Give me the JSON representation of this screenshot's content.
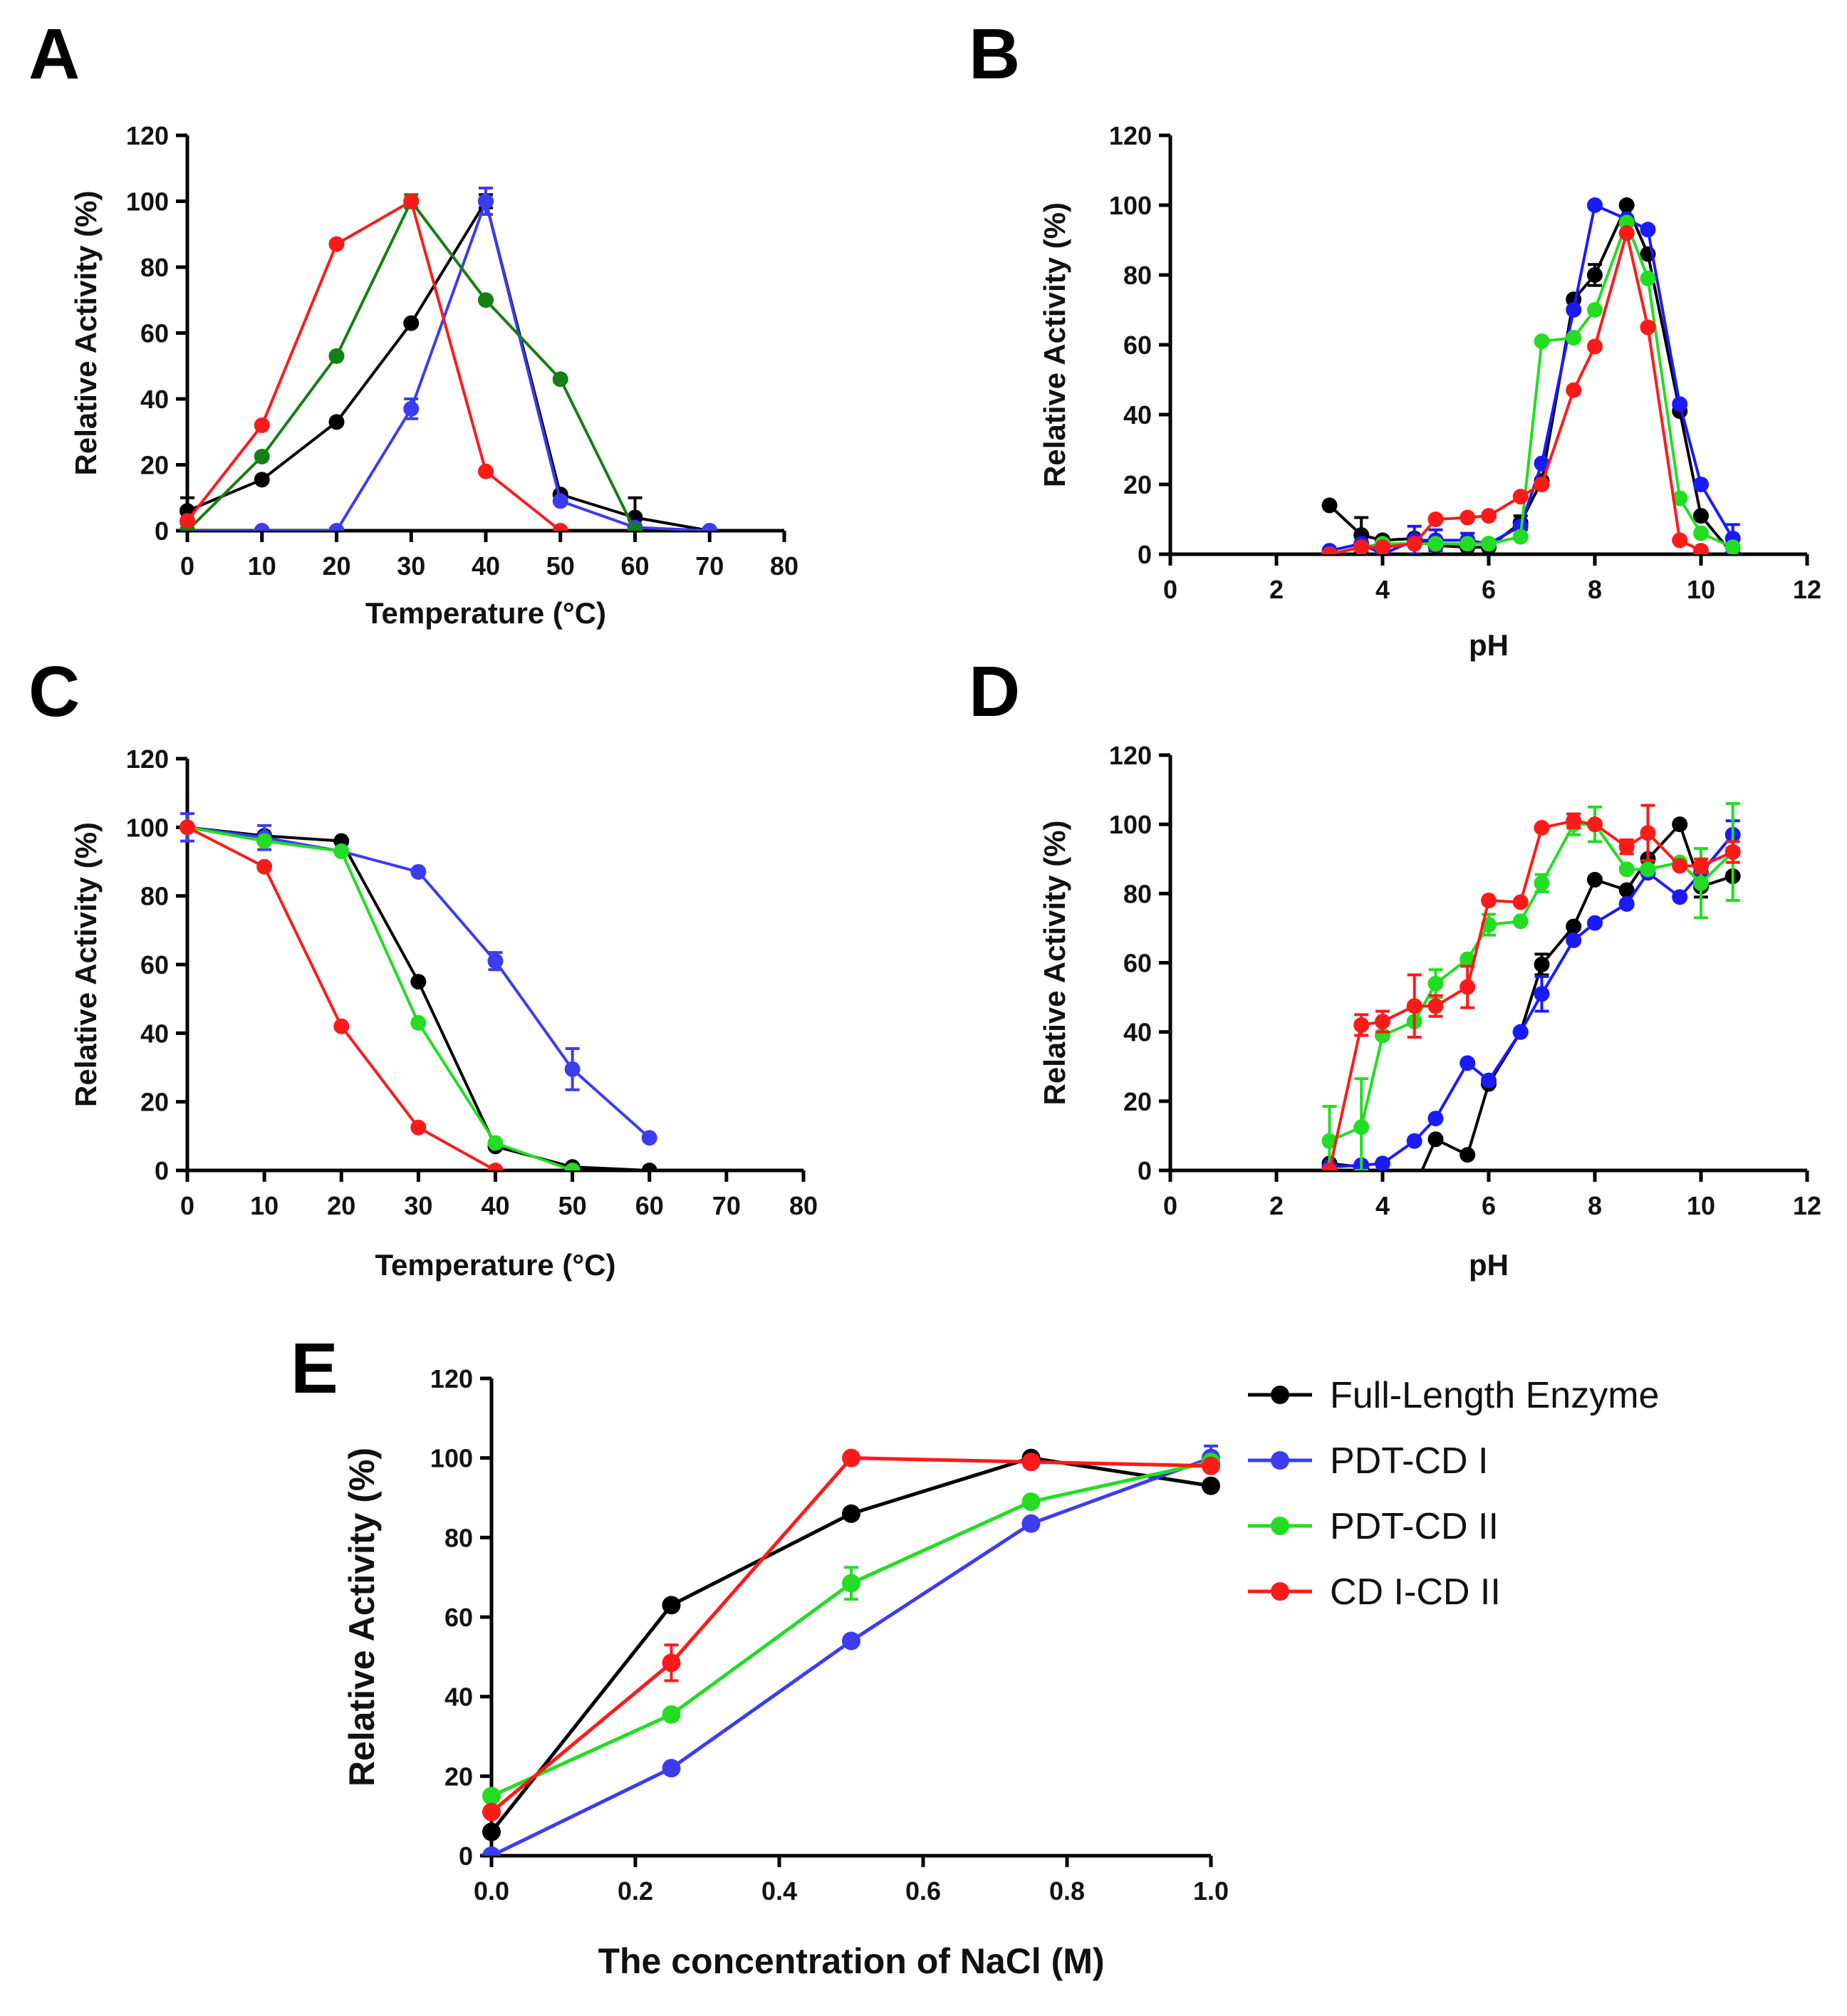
{
  "legend": [
    {
      "label": "Full-Length Enzyme",
      "color": "#000000"
    },
    {
      "label": "PDT-CD I",
      "color": "#3c3cf0"
    },
    {
      "label": "PDT-CD II",
      "color": "#22dd22"
    },
    {
      "label": "CD I-CD II",
      "color": "#ff1a1a"
    }
  ],
  "chart_data": [
    {
      "panel": "A",
      "type": "line",
      "xlabel": "Temperature (°C)",
      "ylabel": "Relative Activity (%)",
      "xlim": [
        0,
        80
      ],
      "ylim": [
        0,
        120
      ],
      "xticks": [
        0,
        10,
        20,
        30,
        40,
        50,
        60,
        70,
        80
      ],
      "yticks": [
        0,
        20,
        40,
        60,
        80,
        100,
        120
      ],
      "series": [
        {
          "name": "Full-Length Enzyme",
          "color": "#000000",
          "x": [
            0,
            10,
            20,
            30,
            40,
            50,
            60,
            70
          ],
          "y": [
            6,
            15.5,
            33,
            63,
            100,
            11,
            4,
            0
          ],
          "err": [
            4,
            0,
            0,
            0,
            2,
            0,
            6,
            0
          ]
        },
        {
          "name": "PDT-CD I",
          "color": "#3c3cf0",
          "x": [
            0,
            10,
            20,
            30,
            40,
            50,
            60,
            70
          ],
          "y": [
            0,
            0,
            0,
            37,
            100,
            9,
            1,
            0
          ],
          "err": [
            0,
            0,
            0,
            3,
            4,
            0,
            0,
            0
          ]
        },
        {
          "name": "PDT-CD II",
          "color": "#138013",
          "x": [
            0,
            10,
            20,
            30,
            40,
            50,
            60
          ],
          "y": [
            0,
            22.5,
            53,
            100,
            70,
            46,
            0
          ],
          "err": [
            0,
            0,
            0,
            2,
            0,
            0,
            0
          ]
        },
        {
          "name": "CD I-CD II",
          "color": "#ff1a1a",
          "x": [
            0,
            10,
            20,
            30,
            40,
            50
          ],
          "y": [
            3,
            32,
            87,
            100,
            18,
            0
          ],
          "err": [
            0,
            0,
            0,
            0,
            0,
            0
          ]
        }
      ]
    },
    {
      "panel": "B",
      "type": "line",
      "xlabel": "pH",
      "ylabel": "Relative Activity (%)",
      "xlim": [
        0,
        12
      ],
      "ylim": [
        0,
        120
      ],
      "xticks": [
        0,
        2,
        4,
        6,
        8,
        10,
        12
      ],
      "yticks": [
        0,
        20,
        40,
        60,
        80,
        100,
        120
      ],
      "series": [
        {
          "name": "Full-Length Enzyme",
          "color": "#000000",
          "x": [
            3,
            3.6,
            4,
            4.6,
            5,
            5.6,
            6,
            6.6,
            7,
            7.6,
            8,
            8.6,
            9,
            9.6,
            10,
            10.6
          ],
          "y": [
            14,
            5.5,
            4,
            4.5,
            2.5,
            2,
            2,
            9,
            21,
            73,
            80,
            100,
            86,
            41,
            11,
            0
          ],
          "err": [
            0,
            5,
            0,
            0,
            0,
            0,
            0,
            2,
            0,
            0,
            3,
            0,
            0,
            0,
            0,
            0
          ]
        },
        {
          "name": "PDT-CD I",
          "color": "#1a1aff",
          "x": [
            3,
            3.6,
            4,
            4.6,
            5,
            5.6,
            6,
            6.6,
            7,
            7.6,
            8,
            8.6,
            9,
            9.6,
            10,
            10.6
          ],
          "y": [
            1,
            3,
            0,
            4,
            4,
            4,
            3,
            8,
            26,
            70,
            100,
            96,
            93,
            43,
            20,
            4.5
          ],
          "err": [
            0,
            0,
            0,
            4,
            3,
            2,
            0,
            0,
            0,
            0,
            0,
            0,
            0,
            0,
            0,
            4
          ]
        },
        {
          "name": "PDT-CD II",
          "color": "#22dd22",
          "x": [
            3,
            3.6,
            4,
            4.6,
            5,
            5.6,
            6,
            6.6,
            7,
            7.6,
            8,
            8.6,
            9,
            9.6,
            10,
            10.6
          ],
          "y": [
            0,
            2,
            3,
            3,
            3,
            3,
            3,
            5,
            61,
            62,
            70,
            95,
            79,
            16,
            6,
            2
          ],
          "err": [
            0,
            0,
            0,
            0,
            0,
            0,
            0,
            0,
            0,
            0,
            0,
            0,
            0,
            0,
            0,
            0
          ]
        },
        {
          "name": "CD I-CD II",
          "color": "#ff1a1a",
          "x": [
            3,
            3.6,
            4,
            4.6,
            5,
            5.6,
            6,
            6.6,
            7,
            7.6,
            8,
            8.6,
            9,
            9.6,
            10
          ],
          "y": [
            0,
            2,
            2,
            3,
            10,
            10.5,
            11,
            16.5,
            20,
            47,
            59.5,
            92,
            65,
            4,
            1
          ],
          "err": [
            0,
            0,
            0,
            0,
            0,
            0,
            0,
            0,
            0,
            0,
            0,
            0,
            0,
            0,
            0
          ]
        }
      ]
    },
    {
      "panel": "C",
      "type": "line",
      "xlabel": "Temperature (°C)",
      "ylabel": "Relative Activity (%)",
      "xlim": [
        0,
        80
      ],
      "ylim": [
        0,
        120
      ],
      "xticks": [
        0,
        10,
        20,
        30,
        40,
        50,
        60,
        70,
        80
      ],
      "yticks": [
        0,
        20,
        40,
        60,
        80,
        100,
        120
      ],
      "series": [
        {
          "name": "Full-Length Enzyme",
          "color": "#000000",
          "x": [
            0,
            10,
            20,
            30,
            40,
            50,
            60
          ],
          "y": [
            100,
            97.5,
            96,
            55,
            7,
            1,
            0
          ],
          "err": [
            0,
            0,
            0,
            0,
            0,
            0,
            0
          ]
        },
        {
          "name": "PDT-CD I",
          "color": "#3c3cf0",
          "x": [
            0,
            10,
            20,
            30,
            40,
            50,
            60
          ],
          "y": [
            100,
            97,
            93,
            87,
            61,
            29.5,
            9.5
          ],
          "err": [
            4,
            3.5,
            0,
            0,
            2.5,
            6,
            0
          ]
        },
        {
          "name": "PDT-CD II",
          "color": "#22dd22",
          "x": [
            0,
            10,
            20,
            30,
            40,
            50
          ],
          "y": [
            100,
            96,
            93,
            43,
            8,
            0
          ],
          "err": [
            0,
            0,
            0,
            0,
            0,
            0
          ]
        },
        {
          "name": "CD I-CD II",
          "color": "#ff1a1a",
          "x": [
            0,
            10,
            20,
            30,
            40
          ],
          "y": [
            100,
            88.5,
            42,
            12.5,
            0
          ],
          "err": [
            0,
            0,
            0,
            0,
            0
          ]
        }
      ]
    },
    {
      "panel": "D",
      "type": "line",
      "xlabel": "pH",
      "ylabel": "Relative Activity (%)",
      "xlim": [
        0,
        12
      ],
      "ylim": [
        0,
        120
      ],
      "xticks": [
        0,
        2,
        4,
        6,
        8,
        10,
        12
      ],
      "yticks": [
        0,
        20,
        40,
        60,
        80,
        100,
        120
      ],
      "series": [
        {
          "name": "Full-Length Enzyme",
          "color": "#000000",
          "x": [
            3,
            3.6,
            4.6,
            5,
            5.6,
            6,
            6.6,
            7,
            7.6,
            8,
            8.6,
            9,
            9.6,
            10,
            10.6
          ],
          "y": [
            2,
            1,
            -5,
            9,
            4.5,
            25,
            40,
            59.5,
            70.5,
            84,
            81,
            90,
            100,
            82,
            85
          ],
          "err": [
            0,
            0,
            0,
            0,
            0,
            0,
            0,
            3,
            0,
            0,
            0,
            0,
            0,
            3,
            0
          ]
        },
        {
          "name": "PDT-CD I",
          "color": "#1a1aff",
          "x": [
            3,
            3.6,
            4,
            4.6,
            5,
            5.6,
            6,
            6.6,
            7,
            7.6,
            8,
            8.6,
            9,
            9.6,
            10,
            10.6
          ],
          "y": [
            1,
            1.5,
            2,
            8.5,
            15,
            31,
            26,
            40,
            51,
            66.5,
            71.5,
            77,
            86,
            79,
            86,
            97
          ],
          "err": [
            0,
            0,
            0,
            0,
            0,
            0,
            0,
            0,
            5,
            0,
            0,
            0,
            0,
            0,
            0,
            4
          ]
        },
        {
          "name": "PDT-CD II",
          "color": "#22dd22",
          "x": [
            3,
            3.6,
            4,
            4.6,
            5,
            5.6,
            6,
            6.6,
            7,
            7.6,
            8,
            8.6,
            9,
            9.6,
            10,
            10.6
          ],
          "y": [
            8.5,
            12.5,
            39,
            43,
            54,
            61,
            71,
            72,
            83,
            100,
            100,
            87,
            87,
            89,
            83,
            92
          ],
          "err": [
            10,
            14,
            0,
            0,
            4,
            0,
            3,
            0,
            2.5,
            3,
            5,
            0,
            0,
            0,
            10,
            14
          ]
        },
        {
          "name": "CD I-CD II",
          "color": "#ff1a1a",
          "x": [
            3,
            3.6,
            4,
            4.6,
            5,
            5.6,
            6,
            6.6,
            7,
            7.6,
            8,
            8.6,
            9,
            9.6,
            10,
            10.6
          ],
          "y": [
            0,
            42,
            43,
            47.5,
            47.5,
            53,
            78,
            77.5,
            99,
            101,
            100,
            93.5,
            97.5,
            88,
            88,
            92
          ],
          "err": [
            0,
            3,
            3,
            9,
            3,
            6,
            0,
            0,
            0,
            2,
            0,
            2,
            8,
            0,
            2,
            3
          ]
        }
      ]
    },
    {
      "panel": "E",
      "type": "line",
      "xlabel": "The concentration of NaCl (M)",
      "ylabel": "Relative Activity (%)",
      "xlim": [
        0,
        1.0
      ],
      "ylim": [
        0,
        120
      ],
      "xticks": [
        "0.0",
        "0.2",
        "0.4",
        "0.6",
        "0.8",
        "1.0"
      ],
      "yticks": [
        0,
        20,
        40,
        60,
        80,
        100,
        120
      ],
      "series": [
        {
          "name": "Full-Length Enzyme",
          "color": "#000000",
          "x": [
            0,
            0.25,
            0.5,
            0.75,
            1.0
          ],
          "y": [
            6,
            63,
            86,
            100,
            93
          ],
          "err": [
            0,
            0,
            0,
            0,
            0
          ]
        },
        {
          "name": "PDT-CD I",
          "color": "#3c3cf0",
          "x": [
            0,
            0.25,
            0.5,
            0.75,
            1.0
          ],
          "y": [
            0,
            22,
            54,
            83.5,
            100
          ],
          "err": [
            0,
            0,
            0,
            0,
            3
          ]
        },
        {
          "name": "PDT-CD II",
          "color": "#22dd22",
          "x": [
            0,
            0.25,
            0.5,
            0.75,
            1.0
          ],
          "y": [
            15,
            35.5,
            68.5,
            89,
            99
          ],
          "err": [
            0,
            0,
            4,
            0,
            0
          ]
        },
        {
          "name": "CD I-CD II",
          "color": "#ff1a1a",
          "x": [
            0,
            0.25,
            0.5,
            0.75,
            1.0
          ],
          "y": [
            11,
            48.5,
            100,
            99,
            98
          ],
          "err": [
            0,
            4.5,
            0,
            0,
            0
          ]
        }
      ]
    }
  ]
}
